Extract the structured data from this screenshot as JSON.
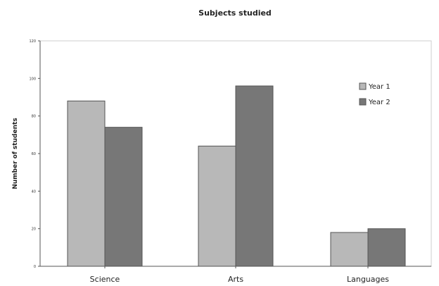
{
  "chart_data": {
    "type": "bar",
    "title": "Subjects studied",
    "ylabel": "Number of students",
    "xlabel": "",
    "ylim": [
      0,
      120
    ],
    "yticks": [
      0,
      20,
      40,
      60,
      80,
      100,
      120
    ],
    "categories": [
      "Science",
      "Arts",
      "Languages"
    ],
    "series": [
      {
        "name": "Year 1",
        "values": [
          88,
          64,
          18
        ],
        "color": "#b8b8b8"
      },
      {
        "name": "Year 2",
        "values": [
          74,
          96,
          20
        ],
        "color": "#777777"
      }
    ],
    "grid": false,
    "legend": "right"
  }
}
